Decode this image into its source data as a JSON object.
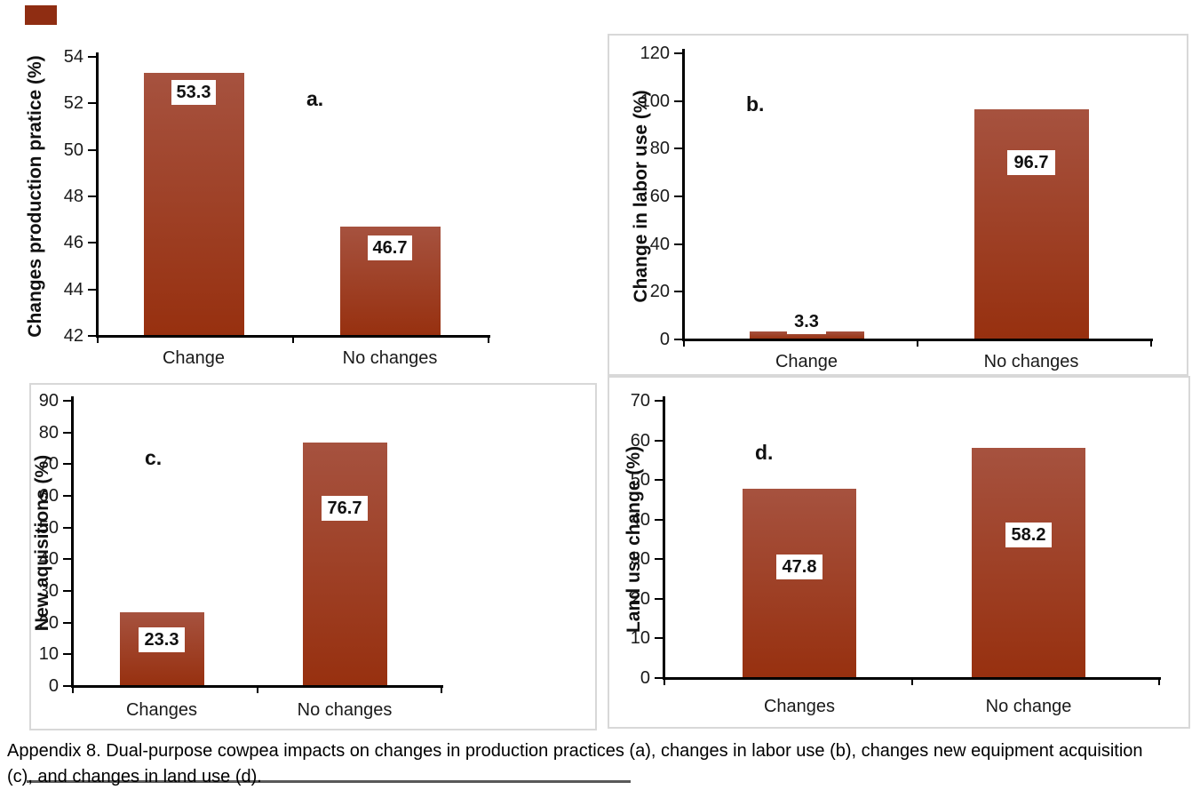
{
  "figure": {
    "caption_line1": "Appendix 8. Dual-purpose cowpea impacts on changes in production practices (a), changes in labor use (b), changes new equipment acquisition",
    "caption_line2": "(c), and changes in land use (d)."
  },
  "colors": {
    "bar_gradient_top": "#a6523f",
    "bar_gradient_bottom": "#97300f",
    "axis": "#000000",
    "panel_border": "#d8d8d8",
    "tick_text": "#1a1a1a",
    "data_label_bg": "#ffffff",
    "data_label_text": "#111111"
  },
  "chart_data": [
    {
      "id": "a",
      "type": "bar",
      "panel_label": "a.",
      "title": "",
      "xlabel": "",
      "ylabel": "Changes production pratice (%)",
      "categories": [
        "Change",
        "No changes"
      ],
      "values": [
        53.3,
        46.7
      ],
      "data_labels": [
        "53.3",
        "46.7"
      ],
      "ylim": [
        42,
        54
      ],
      "yticks": [
        42,
        44,
        46,
        48,
        50,
        52,
        54
      ],
      "grid": false,
      "legend": false,
      "bordered": false
    },
    {
      "id": "b",
      "type": "bar",
      "panel_label": "b.",
      "title": "",
      "xlabel": "",
      "ylabel": "Change in labor use (%)",
      "categories": [
        "Change",
        "No changes"
      ],
      "values": [
        3.3,
        96.7
      ],
      "data_labels": [
        "3.3",
        "96.7"
      ],
      "ylim": [
        0,
        120
      ],
      "yticks": [
        0,
        20,
        40,
        60,
        80,
        100,
        120
      ],
      "grid": false,
      "legend": false,
      "bordered": true
    },
    {
      "id": "c",
      "type": "bar",
      "panel_label": "c.",
      "title": "",
      "xlabel": "",
      "ylabel": "New aquisitions (%)",
      "categories": [
        "Changes",
        "No changes"
      ],
      "values": [
        23.3,
        76.7
      ],
      "data_labels": [
        "23.3",
        "76.7"
      ],
      "ylim": [
        0,
        90
      ],
      "yticks": [
        0,
        10,
        20,
        30,
        40,
        50,
        60,
        70,
        80,
        90
      ],
      "grid": false,
      "legend": false,
      "bordered": true
    },
    {
      "id": "d",
      "type": "bar",
      "panel_label": "d.",
      "title": "",
      "xlabel": "",
      "ylabel": "Land use change (%)",
      "categories": [
        "Changes",
        "No change"
      ],
      "values": [
        47.8,
        58.2
      ],
      "data_labels": [
        "47.8",
        "58.2"
      ],
      "ylim": [
        0,
        70
      ],
      "yticks": [
        0,
        10,
        20,
        30,
        40,
        50,
        60,
        70
      ],
      "grid": false,
      "legend": false,
      "bordered": true
    }
  ]
}
